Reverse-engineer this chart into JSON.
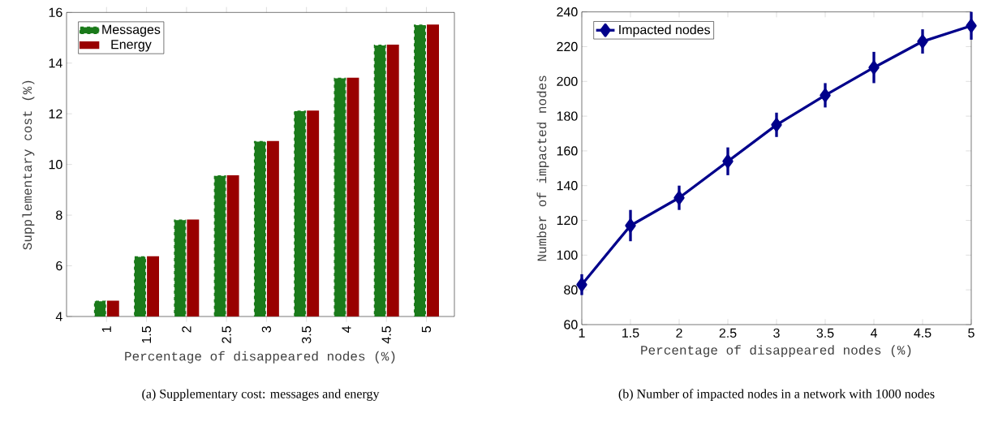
{
  "chart_data": [
    {
      "type": "bar",
      "xlabel": "Percentage of disappeared nodes (%)",
      "ylabel": "Supplementary cost (%)",
      "categories": [
        "1",
        "1.5",
        "2",
        "2.5",
        "3",
        "3.5",
        "4",
        "4.5",
        "5"
      ],
      "series": [
        {
          "name": "Messages",
          "color": "#1a7a1a",
          "values": [
            4.6,
            6.35,
            7.8,
            9.55,
            10.9,
            12.1,
            13.4,
            14.7,
            15.5
          ]
        },
        {
          "name": "Energy",
          "color": "#990000",
          "values": [
            4.6,
            6.35,
            7.8,
            9.55,
            10.9,
            12.1,
            13.4,
            14.7,
            15.5
          ]
        }
      ],
      "ylim": [
        4,
        16
      ],
      "yticks": [
        4,
        6,
        8,
        10,
        12,
        14,
        16
      ],
      "legend": "top left",
      "annotations": [
        "(a) Supplementary cost: messages and energy"
      ]
    },
    {
      "type": "line",
      "xlabel": "Percentage of disappeared nodes (%)",
      "ylabel": "Number of impacted nodes",
      "x": [
        1,
        1.5,
        2,
        2.5,
        3,
        3.5,
        4,
        4.5,
        5
      ],
      "series": [
        {
          "name": "Impacted nodes",
          "color": "#00008b",
          "values": [
            83,
            117,
            133,
            154,
            175,
            192,
            208,
            223,
            232
          ],
          "errors": [
            6,
            9,
            7,
            8,
            7,
            7,
            9,
            7,
            8
          ]
        }
      ],
      "xlim": [
        1,
        5
      ],
      "xticks": [
        1,
        1.5,
        2,
        2.5,
        3,
        3.5,
        4,
        4.5,
        5
      ],
      "ylim": [
        60,
        240
      ],
      "yticks": [
        60,
        80,
        100,
        120,
        140,
        160,
        180,
        200,
        220,
        240
      ],
      "marker": "diamond",
      "line_style": "solid",
      "legend": "top left",
      "annotations": [
        "(b) Number of impacted nodes in a network with 1000 nodes"
      ]
    }
  ]
}
